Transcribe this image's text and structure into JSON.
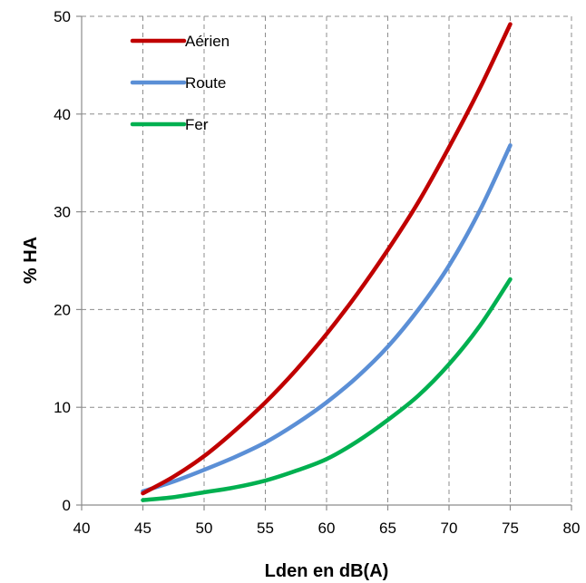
{
  "chart_data": {
    "type": "line",
    "title": "",
    "xlabel": "Lden en dB(A)",
    "ylabel": "% HA",
    "xlim": [
      40,
      80
    ],
    "ylim": [
      0,
      50
    ],
    "xticks": [
      40,
      45,
      50,
      55,
      60,
      65,
      70,
      75,
      80
    ],
    "yticks": [
      0,
      10,
      20,
      30,
      40,
      50
    ],
    "grid": true,
    "legend_position": "top-left",
    "x": [
      45,
      47.5,
      50,
      52.5,
      55,
      57.5,
      60,
      62.5,
      65,
      67.5,
      70,
      72.5,
      75
    ],
    "series": [
      {
        "name": "Aérien",
        "color": "#c00000",
        "values": [
          1.2,
          2.9,
          5.0,
          7.6,
          10.5,
          13.8,
          17.5,
          21.6,
          26.1,
          31.0,
          36.6,
          42.6,
          49.2
        ]
      },
      {
        "name": "Route",
        "color": "#5b8fd6",
        "values": [
          1.4,
          2.4,
          3.6,
          4.9,
          6.4,
          8.3,
          10.5,
          13.1,
          16.2,
          20.0,
          24.5,
          30.1,
          36.8
        ]
      },
      {
        "name": "Fer",
        "color": "#00b050",
        "values": [
          0.5,
          0.8,
          1.3,
          1.8,
          2.5,
          3.5,
          4.7,
          6.5,
          8.7,
          11.2,
          14.4,
          18.3,
          23.1
        ]
      }
    ]
  }
}
